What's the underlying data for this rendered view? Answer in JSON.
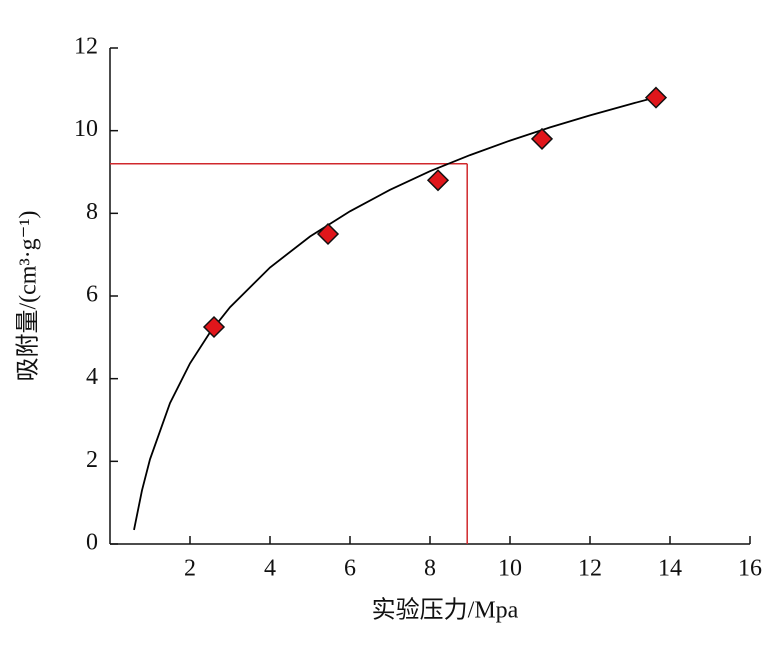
{
  "chart_data": {
    "type": "scatter",
    "x_label": "实验压力/Mpa",
    "y_label": "吸附量/(cm³·g⁻¹)",
    "xlim": [
      0,
      16
    ],
    "ylim": [
      0,
      12
    ],
    "xticks": [
      2,
      4,
      6,
      8,
      10,
      12,
      14,
      16
    ],
    "yticks": [
      0,
      2,
      4,
      6,
      8,
      10,
      12
    ],
    "series": [
      {
        "color": "#e0161b",
        "x": [
          2.6,
          5.45,
          8.2,
          10.8,
          13.65
        ],
        "values": [
          5.25,
          7.5,
          8.8,
          9.8,
          10.8
        ]
      }
    ],
    "fit_curve": {
      "color": "#000000",
      "x": [
        0.6,
        0.8,
        1,
        1.5,
        2,
        2.5,
        3,
        4,
        5,
        6,
        7,
        8,
        9,
        10,
        11,
        12,
        13,
        13.7
      ],
      "values": [
        0.34,
        1.3,
        2.05,
        3.41,
        4.37,
        5.12,
        5.73,
        6.69,
        7.44,
        8.05,
        8.57,
        9.02,
        9.41,
        9.76,
        10.08,
        10.37,
        10.64,
        10.82
      ]
    },
    "reference_lines": {
      "color": "#d0282c",
      "x": 8.93,
      "y": 9.2
    }
  }
}
